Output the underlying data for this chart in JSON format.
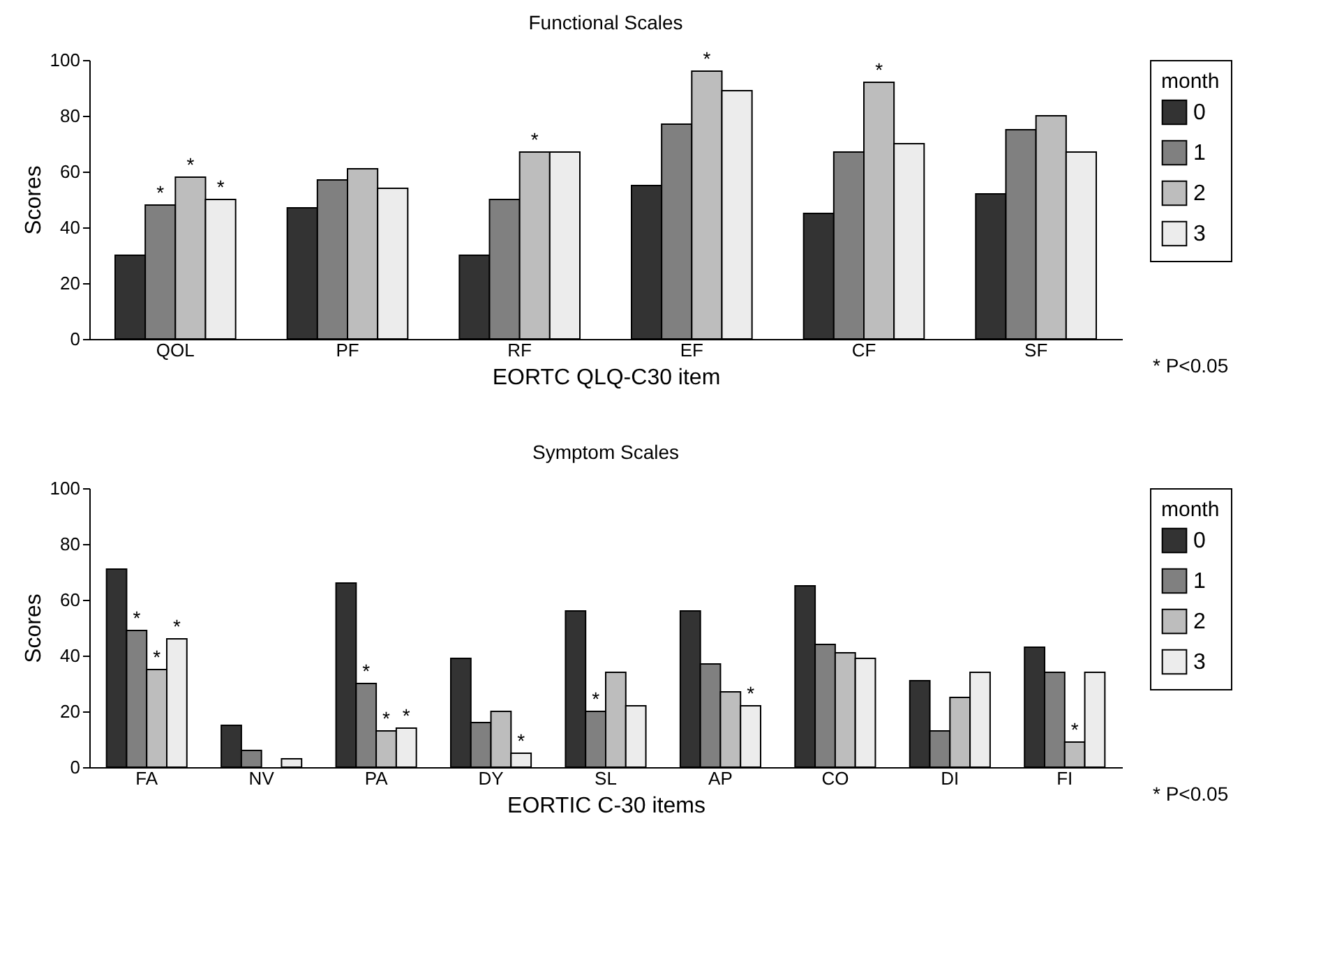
{
  "chart_data": [
    {
      "type": "bar",
      "title": "Functional Scales",
      "xlabel": "EORTC QLQ-C30 item",
      "ylabel": "Scores",
      "categories": [
        "QOL",
        "PF",
        "RF",
        "EF",
        "CF",
        "SF"
      ],
      "series": [
        {
          "name": "0",
          "color": "#333333",
          "values": [
            30,
            47,
            30,
            55,
            45,
            52
          ]
        },
        {
          "name": "1",
          "color": "#808080",
          "values": [
            48,
            57,
            50,
            77,
            67,
            75
          ]
        },
        {
          "name": "2",
          "color": "#bdbdbd",
          "values": [
            58,
            61,
            67,
            96,
            92,
            80
          ]
        },
        {
          "name": "3",
          "color": "#ececec",
          "values": [
            50,
            54,
            67,
            89,
            70,
            67
          ]
        }
      ],
      "ylim": [
        0,
        100
      ],
      "yticks": [
        0,
        20,
        40,
        60,
        80,
        100
      ],
      "legend": "right",
      "legend_title": "month",
      "annotations": [
        {
          "text": "*",
          "x": "QOL",
          "y": 48
        },
        {
          "text": "*",
          "x": "QOL",
          "y": 58
        },
        {
          "text": "*",
          "x": "QOL",
          "y": 50
        },
        {
          "text": "*",
          "x": "RF",
          "y": 67
        },
        {
          "text": "*",
          "x": "EF",
          "y": 96
        },
        {
          "text": "*",
          "x": "CF",
          "y": 92
        },
        "* P<0.05"
      ]
    },
    {
      "type": "bar",
      "title": "Symptom Scales",
      "xlabel": "EORTIC C-30 items",
      "ylabel": "Scores",
      "categories": [
        "FA",
        "NV",
        "PA",
        "DY",
        "SL",
        "AP",
        "CO",
        "DI",
        "FI"
      ],
      "series": [
        {
          "name": "0",
          "color": "#333333",
          "values": [
            71,
            15,
            66,
            39,
            56,
            56,
            65,
            31,
            43
          ]
        },
        {
          "name": "1",
          "color": "#808080",
          "values": [
            49,
            6,
            30,
            16,
            20,
            37,
            44,
            13,
            34
          ]
        },
        {
          "name": "2",
          "color": "#bdbdbd",
          "values": [
            35,
            null,
            13,
            20,
            34,
            27,
            41,
            25,
            9
          ]
        },
        {
          "name": "3",
          "color": "#ececec",
          "values": [
            46,
            3,
            14,
            5,
            22,
            22,
            39,
            34,
            34
          ]
        }
      ],
      "ylim": [
        0,
        100
      ],
      "yticks": [
        0,
        20,
        40,
        60,
        80,
        100
      ],
      "legend": "right",
      "legend_title": "month",
      "annotations": [
        {
          "text": "*",
          "x": "FA",
          "y": 49
        },
        {
          "text": "*",
          "x": "FA",
          "y": 35
        },
        {
          "text": "*",
          "x": "FA",
          "y": 46
        },
        {
          "text": "*",
          "x": "PA",
          "y": 30
        },
        {
          "text": "*",
          "x": "PA",
          "y": 13
        },
        {
          "text": "*",
          "x": "PA",
          "y": 14
        },
        {
          "text": "*",
          "x": "DY",
          "y": 5
        },
        {
          "text": "*",
          "x": "SL",
          "y": 20
        },
        {
          "text": "*",
          "x": "AP",
          "y": 22
        },
        {
          "text": "*",
          "x": "FI",
          "y": 9
        },
        "* P<0.05"
      ]
    }
  ]
}
